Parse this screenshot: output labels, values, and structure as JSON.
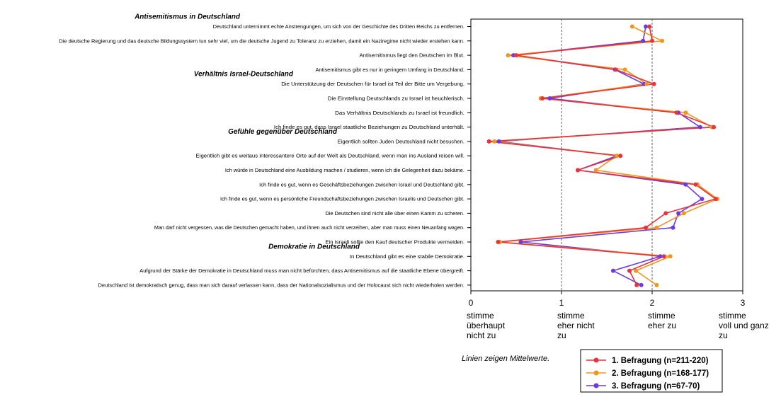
{
  "chart_data": {
    "type": "line",
    "orientation": "horizontal",
    "xlim": [
      0,
      3
    ],
    "x_ticks": [
      "0",
      "1",
      "2",
      "3"
    ],
    "scale_labels": [
      {
        "value": 0,
        "lines": [
          "stimme",
          "überhaupt",
          "nicht zu"
        ]
      },
      {
        "value": 1,
        "lines": [
          "stimme",
          "eher nicht",
          "zu"
        ]
      },
      {
        "value": 2,
        "lines": [
          "stimme",
          "eher zu"
        ]
      },
      {
        "value": 3,
        "lines": [
          "stimme",
          "voll und ganz",
          "zu"
        ]
      }
    ],
    "reference_lines": [
      1,
      2
    ],
    "section_titles": [
      {
        "text": "Antisemitismus in Deutschland",
        "before_item": 0
      },
      {
        "text": "Verhältnis Israel-Deutschland",
        "before_item": 4
      },
      {
        "text": "Gefühle gegenüber Deutschland",
        "before_item": 8
      },
      {
        "text": "Demokratie in Deutschland",
        "before_item": 16
      }
    ],
    "categories": [
      "Deutschland unternimmt echte Anstrengungen, um sich von der Geschichte des Dritten Reichs zu entfernen.",
      "Die deutsche Regierung und das deutsche Bildungssystem tun sehr viel, um die deutsche Jugend zu Toleranz zu erziehen, damit ein Naziregime nicht wieder erstehen kann.",
      "Antisemitismus liegt den Deutschen im Blut.",
      "Antisemitismus gibt es nur in geringem Umfang in Deutschland.",
      "Die Unterstützung der Deutschen für Israel ist Teil der Bitte um Vergebung.",
      "Die Einstellung Deutschlands zu Israel ist heuchlerisch.",
      "Das Verhältnis Deutschlands zu Israel ist freundlich.",
      "Ich finde es gut, dass Israel staatliche Beziehungen zu Deutschland unterhält.",
      "Eigentlich sollten Juden Deutschland nicht besuchen.",
      "Eigentlich gibt es weitaus interessantere Orte auf der Welt als Deutschland, wenn man ins Ausland reisen will.",
      "Ich würde in Deutschland eine Ausbildung machen / studieren, wenn ich die Gelegenheit dazu bekäme.",
      "Ich finde es gut, wenn es Geschäftsbeziehungen zwischen Israel und Deutschland gibt.",
      "Ich finde es gut, wenn es persönliche Freundschaftsbeziehungen zwischen Israelis und Deutschen gibt.",
      "Die Deutschen sind nicht alle über einen Kamm zu scheren.",
      "Man darf nicht vergessen, was die Deutschen gemacht haben, und ihnen auch nicht verzeihen, aber man muss einen Neuanfang wagen.",
      "Ein Israeli sollte den Kauf deutscher Produkte vermeiden.",
      "In Deutschland gibt es eine stabile Demokratie.",
      "Aufgrund der Stärke der Demokratie in Deutschland muss man nicht befürchten, dass Antisemitismus auf die staatliche Ebene übergreift.",
      "Deutschland ist demokratisch genug, dass man sich darauf verlassen kann, dass der Nationalsozialismus und der Holocaust sich nicht wiederholen werden."
    ],
    "series": [
      {
        "name": "1. Befragung (n=211-220)",
        "color": "#e8333a",
        "values": [
          1.97,
          2.0,
          0.5,
          1.6,
          2.02,
          0.79,
          2.27,
          2.68,
          0.2,
          1.65,
          1.18,
          2.48,
          2.7,
          2.15,
          1.93,
          0.3,
          2.13,
          1.75,
          1.83
        ]
      },
      {
        "name": "2. Befragung (n=168-177)",
        "color": "#f0961e",
        "values": [
          1.78,
          2.11,
          0.41,
          1.7,
          1.94,
          0.77,
          2.37,
          2.66,
          0.26,
          1.61,
          1.38,
          2.5,
          2.72,
          2.35,
          2.05,
          0.32,
          2.2,
          1.82,
          2.05
        ]
      },
      {
        "name": "3. Befragung (n=67-70)",
        "color": "#6a3be0",
        "values": [
          1.93,
          1.9,
          0.47,
          1.59,
          1.91,
          0.87,
          2.29,
          2.53,
          0.31,
          1.61,
          1.18,
          2.37,
          2.55,
          2.29,
          2.23,
          0.55,
          2.09,
          1.57,
          1.88
        ]
      }
    ],
    "note": "Linien zeigen Mittelwerte."
  }
}
